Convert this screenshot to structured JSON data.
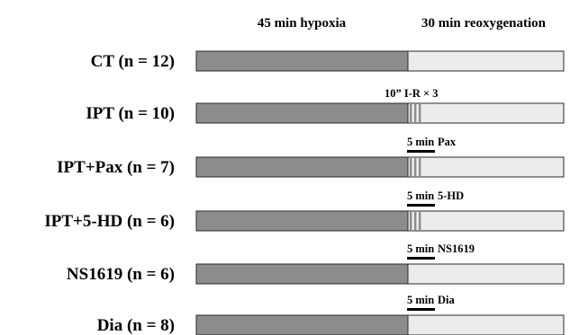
{
  "headers": {
    "hypoxia": "45 min hypoxia",
    "reoxygenation": "30 min reoxygenation"
  },
  "colors": {
    "hypoxia_fill": "#8c8c8c",
    "reoxygenation_fill": "#ececec",
    "outline": "#2a2a2a",
    "stripe": "#8c8c8c",
    "marker": "#000000"
  },
  "groups": [
    {
      "label": "CT (n = 12)",
      "annotation": null
    },
    {
      "label": "IPT (n = 10)",
      "annotation": {
        "text": "10” I-R × 3",
        "has_bar": false,
        "stripes": true
      }
    },
    {
      "label": "IPT+Pax (n = 7)",
      "annotation": {
        "duration": "5 min",
        "agent": "Pax",
        "has_bar": true,
        "stripes": true
      }
    },
    {
      "label": "IPT+5-HD (n = 6)",
      "annotation": {
        "duration": "5 min",
        "agent": "5-HD",
        "has_bar": true,
        "stripes": true
      }
    },
    {
      "label": "NS1619 (n = 6)",
      "annotation": {
        "duration": "5 min",
        "agent": "NS1619",
        "has_bar": true,
        "stripes": false
      }
    },
    {
      "label": "Dia (n = 8)",
      "annotation": {
        "duration": "5 min",
        "agent": "Dia",
        "has_bar": true,
        "stripes": false
      }
    }
  ]
}
